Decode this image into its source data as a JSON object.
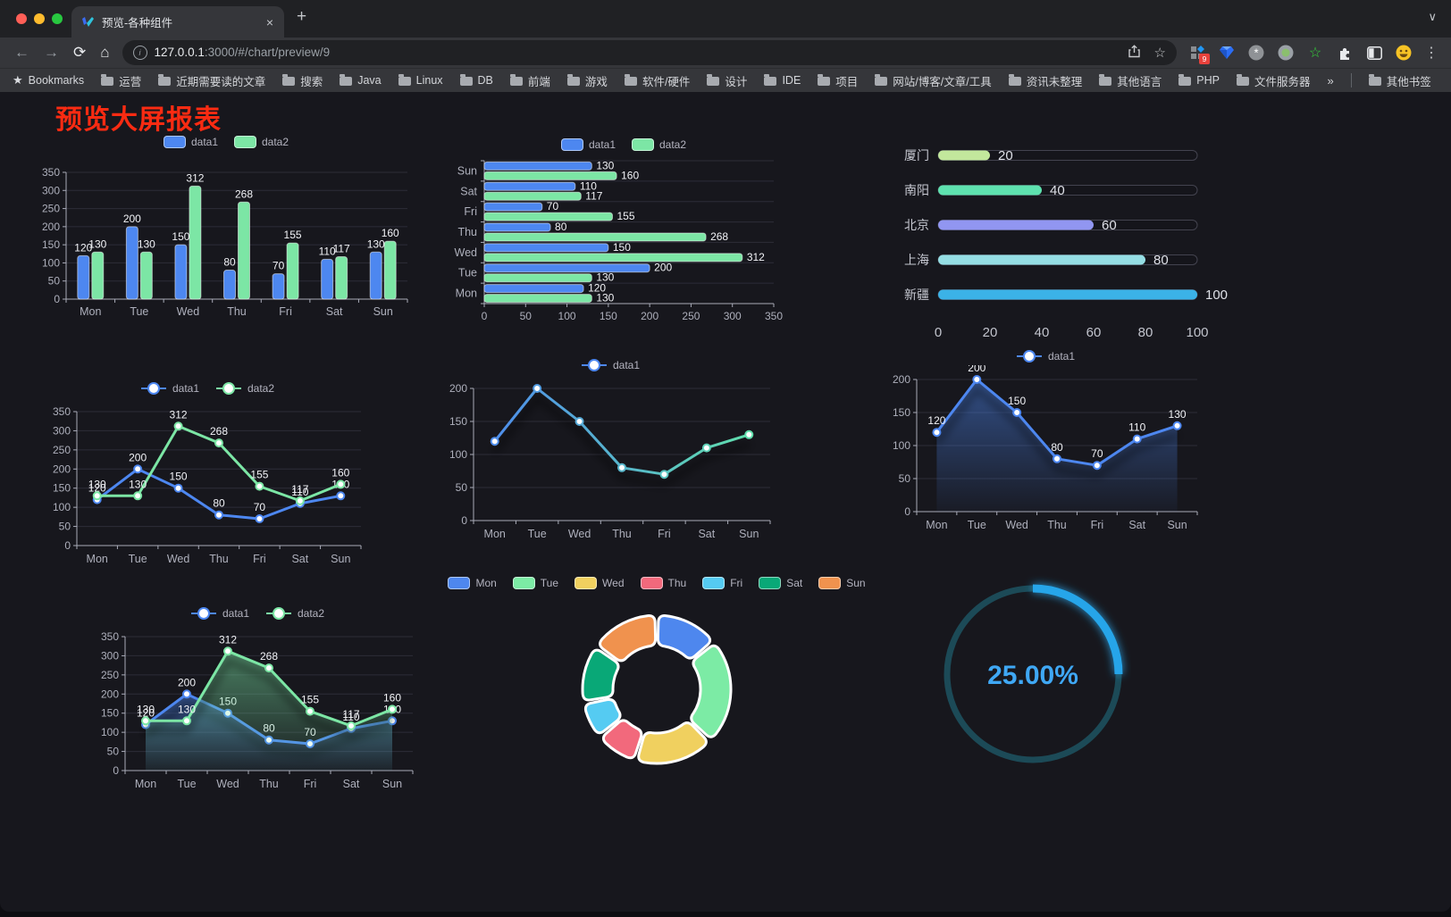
{
  "browser": {
    "tab": {
      "title": "预览-各种组件"
    },
    "url": {
      "host": "127.0.0.1",
      "rest": ":3000/#/chart/preview/9"
    },
    "bookmarks_label": "Bookmarks",
    "bookmarks": [
      "运营",
      "近期需要读的文章",
      "搜索",
      "Java",
      "Linux",
      "DB",
      "前端",
      "游戏",
      "软件/硬件",
      "设计",
      "IDE",
      "项目",
      "网站/博客/文章/工具",
      "资讯未整理",
      "其他语言",
      "PHP",
      "文件服务器"
    ],
    "bookmarks_overflow": "»",
    "other_bookmarks": "其他书签",
    "extension_badge": "9"
  },
  "icons": {
    "back": "←",
    "forward": "→",
    "reload": "⟳",
    "home": "⌂",
    "close_tab": "×",
    "new_tab": "+",
    "overflow_chevron": "∨",
    "menu": "⋮",
    "bookmarks_star": "★",
    "star_outline": "☆",
    "info": "i",
    "green_star": "☆",
    "asterisk": "*"
  },
  "page": {
    "title": "预览大屏报表",
    "title_color": "#fb2b12",
    "background": "#17171d"
  },
  "chart_data": [
    {
      "type": "bar",
      "categories": [
        "Mon",
        "Tue",
        "Wed",
        "Thu",
        "Fri",
        "Sat",
        "Sun"
      ],
      "series": [
        {
          "name": "data1",
          "color": "#4d87f0",
          "values": [
            120,
            200,
            150,
            80,
            70,
            110,
            130
          ]
        },
        {
          "name": "data2",
          "color": "#7ce6a5",
          "values": [
            130,
            130,
            312,
            268,
            155,
            117,
            160
          ]
        }
      ],
      "ylim": [
        0,
        350
      ],
      "ytick": 50,
      "legend_position": "top",
      "grid": true
    },
    {
      "type": "hbar",
      "categories": [
        "Mon",
        "Tue",
        "Wed",
        "Thu",
        "Fri",
        "Sat",
        "Sun"
      ],
      "display_order": "bottom-to-top",
      "series": [
        {
          "name": "data1",
          "color": "#4d87f0",
          "values": [
            120,
            200,
            150,
            80,
            70,
            110,
            130
          ]
        },
        {
          "name": "data2",
          "color": "#7ce6a5",
          "values": [
            130,
            130,
            312,
            268,
            155,
            117,
            160
          ]
        }
      ],
      "xlim": [
        0,
        350
      ],
      "xtick": 50,
      "legend_position": "top"
    },
    {
      "type": "progress",
      "categories": [
        "厦门",
        "南阳",
        "北京",
        "上海",
        "新疆"
      ],
      "values": [
        20,
        40,
        60,
        80,
        100
      ],
      "colors": [
        "#c2e79c",
        "#5ee2af",
        "#9196f1",
        "#95dee4",
        "#3bb2e7"
      ],
      "xlim": [
        0,
        100
      ],
      "xticks": [
        0,
        20,
        40,
        60,
        80,
        100
      ]
    },
    {
      "type": "line",
      "categories": [
        "Mon",
        "Tue",
        "Wed",
        "Thu",
        "Fri",
        "Sat",
        "Sun"
      ],
      "series": [
        {
          "name": "data1",
          "color": "#4d87f0",
          "values": [
            120,
            200,
            150,
            80,
            70,
            110,
            130
          ],
          "labels": true
        },
        {
          "name": "data2",
          "color": "#7ce6a5",
          "values": [
            130,
            130,
            312,
            268,
            155,
            117,
            160
          ],
          "labels": true
        }
      ],
      "ylim": [
        0,
        350
      ],
      "ytick": 50,
      "legend_position": "top"
    },
    {
      "type": "line",
      "categories": [
        "Mon",
        "Tue",
        "Wed",
        "Thu",
        "Fri",
        "Sat",
        "Sun"
      ],
      "series": [
        {
          "name": "data1",
          "gradient": [
            "#4d87f0",
            "#62e6a8"
          ],
          "values": [
            120,
            200,
            150,
            80,
            70,
            110,
            130
          ],
          "labels": false
        }
      ],
      "ylim": [
        0,
        200
      ],
      "ytick": 50,
      "shadow": true,
      "legend_position": "top"
    },
    {
      "type": "line",
      "categories": [
        "Mon",
        "Tue",
        "Wed",
        "Thu",
        "Fri",
        "Sat",
        "Sun"
      ],
      "series": [
        {
          "name": "data1",
          "color": "#4d87f0",
          "values": [
            120,
            200,
            150,
            80,
            70,
            110,
            130
          ],
          "labels": true,
          "area": true
        }
      ],
      "ylim": [
        0,
        200
      ],
      "ytick": 50,
      "shadow": true,
      "legend_position": "top"
    },
    {
      "type": "line",
      "categories": [
        "Mon",
        "Tue",
        "Wed",
        "Thu",
        "Fri",
        "Sat",
        "Sun"
      ],
      "series": [
        {
          "name": "data1",
          "color": "#4d87f0",
          "values": [
            120,
            200,
            150,
            80,
            70,
            110,
            130
          ],
          "labels": true,
          "area": true
        },
        {
          "name": "data2",
          "color": "#7ce6a5",
          "values": [
            130,
            130,
            312,
            268,
            155,
            117,
            160
          ],
          "labels": true,
          "area": true
        }
      ],
      "ylim": [
        0,
        350
      ],
      "ytick": 50,
      "shadow": true,
      "legend_position": "top"
    },
    {
      "type": "donut",
      "categories": [
        "Mon",
        "Tue",
        "Wed",
        "Thu",
        "Fri",
        "Sat",
        "Sun"
      ],
      "values": [
        120,
        200,
        150,
        80,
        70,
        110,
        130
      ],
      "colors": [
        "#4e87ee",
        "#7ceba5",
        "#f0d05f",
        "#f2697c",
        "#55cbf2",
        "#09a877",
        "#f0924e"
      ],
      "border_color": "#ffffff",
      "legend_position": "top"
    },
    {
      "type": "gauge",
      "value": 25,
      "label": "25.00%",
      "color": "#27a5e9",
      "track_color": "#1c4a57",
      "text_color": "#3fa8f5"
    }
  ]
}
